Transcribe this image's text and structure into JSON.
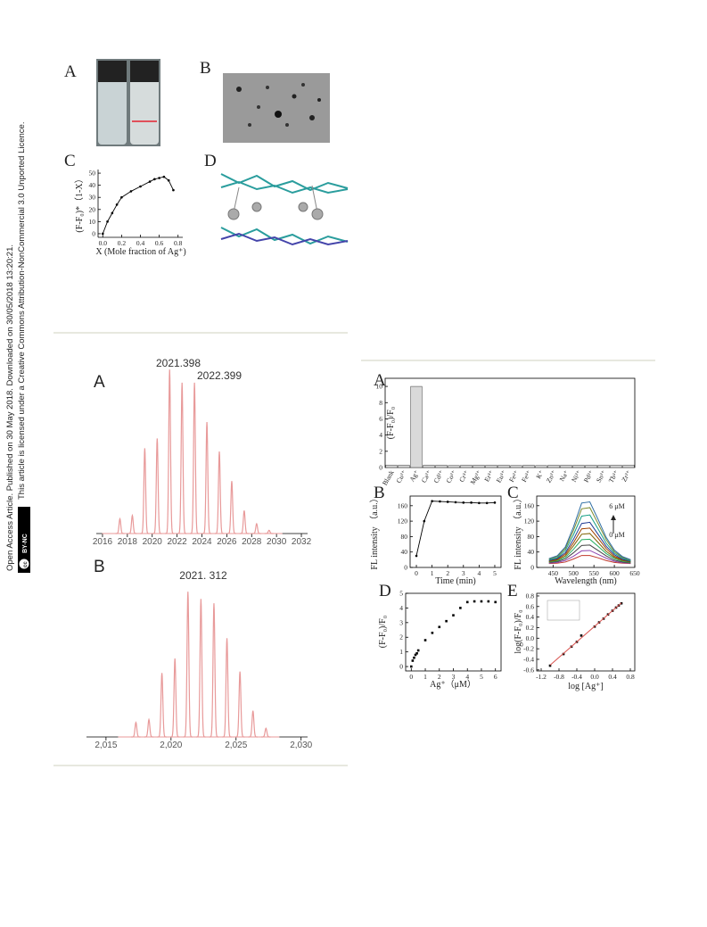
{
  "sidebar": {
    "line1": "Open Access Article. Published on 30 May 2018. Downloaded on 30/05/2018 13:20:21.",
    "line2": "This article is licensed under a Creative Commons Attribution-NonCommercial 3.0 Unported Licence.",
    "badge_icon": "cc",
    "badge": "BY-NC"
  },
  "figure1": {
    "panels": [
      "A",
      "B",
      "D"
    ]
  },
  "chart_data": [
    {
      "type": "line",
      "label": "C",
      "color": "#000000",
      "xlabel": "X (Mole fraction of Ag⁺)",
      "ylabel": "(F-F₀)*（1-X）",
      "x": [
        0,
        0.05,
        0.1,
        0.15,
        0.2,
        0.3,
        0.4,
        0.5,
        0.55,
        0.6,
        0.65,
        0.7,
        0.75
      ],
      "values": [
        0,
        10,
        17,
        24,
        30,
        35,
        39,
        43,
        45,
        46,
        47,
        44,
        36
      ],
      "xlim": [
        -0.05,
        0.85
      ],
      "ylim": [
        -3,
        53
      ],
      "xticks": [
        {
          "value": 0,
          "label": "0.0"
        },
        0.2,
        0.4,
        0.6,
        0.8
      ],
      "yticks": [
        0,
        10,
        20,
        30,
        40,
        50
      ]
    },
    {
      "type": "spectrum",
      "label": "A",
      "color": "#e89a9a",
      "x": [
        2017.4,
        2018.4,
        2019.4,
        2020.4,
        2021.4,
        2022.4,
        2023.4,
        2024.4,
        2025.4,
        2026.4,
        2027.4,
        2028.4,
        2029.4
      ],
      "values": [
        9,
        11,
        52,
        58,
        100,
        92,
        92,
        68,
        50,
        32,
        14,
        6,
        2
      ],
      "xlim": [
        2015.5,
        2032.5
      ],
      "ylim": [
        0,
        105
      ],
      "xticks": [
        2016,
        2018,
        2020,
        2022,
        2024,
        2026,
        2028,
        2030,
        2032
      ],
      "annotations": [
        "2021.398",
        "2022.399"
      ]
    },
    {
      "type": "spectrum",
      "label": "B",
      "color": "#e89a9a",
      "x": [
        2017.3,
        2018.3,
        2019.3,
        2020.3,
        2021.3,
        2022.3,
        2023.3,
        2024.3,
        2025.3,
        2026.3,
        2027.3
      ],
      "values": [
        10,
        12,
        44,
        54,
        100,
        95,
        92,
        68,
        45,
        18,
        6
      ],
      "xlim": [
        2013.5,
        2030.5
      ],
      "ylim": [
        0,
        105
      ],
      "xticks": [
        {
          "value": 2015,
          "label": "2,015"
        },
        {
          "value": 2020,
          "label": "2,020"
        },
        {
          "value": 2025,
          "label": "2,025"
        },
        {
          "value": 2030,
          "label": "2,030"
        }
      ],
      "annotations": [
        "2021. 312"
      ]
    },
    {
      "type": "bar",
      "label": "A",
      "color": "#d9d9d9",
      "ylabel": "(F-F₀)/F₀",
      "categories": [
        "Blank",
        "Cu²⁺",
        "Ag⁺",
        "Ca²⁺",
        "Cd²⁺",
        "Co²⁺",
        "Cr³⁺",
        "Mg²⁺",
        "Er³⁺",
        "Eu³⁺",
        "Fe²⁺",
        "Fe³⁺",
        "K⁺",
        "Zn²⁺",
        "Na⁺",
        "Ni²⁺",
        "Pd²⁺",
        "Sn²⁺",
        "Tb³⁺",
        "Zr²⁺"
      ],
      "values": [
        0.3,
        0.3,
        10,
        0.3,
        0.3,
        0.25,
        0.3,
        0.3,
        0.3,
        0.3,
        0.25,
        0.3,
        0.25,
        0.3,
        0.3,
        0.3,
        0.3,
        0.3,
        0.3,
        0.3
      ],
      "ylim": [
        0,
        11
      ],
      "yticks": [
        0,
        2,
        4,
        6,
        8,
        10
      ]
    },
    {
      "type": "line",
      "label": "B",
      "color": "#000000",
      "xlabel": "Time (min)",
      "ylabel": "FL intensity （a.u.）",
      "x": [
        0,
        0.5,
        1,
        1.5,
        2,
        2.5,
        3,
        3.5,
        4,
        4.5,
        5
      ],
      "values": [
        30,
        120,
        172,
        171,
        170,
        169,
        168,
        168,
        167,
        167,
        168
      ],
      "xlim": [
        -0.4,
        5.4
      ],
      "ylim": [
        0,
        185
      ],
      "xticks": [
        0,
        1,
        2,
        3,
        4,
        5
      ],
      "yticks": [
        0,
        40,
        80,
        120,
        160
      ]
    },
    {
      "type": "line",
      "label": "C",
      "xlabel": "Wavelength (nm)",
      "ylabel": "FL intensity （a.u.）",
      "x": [
        440,
        460,
        480,
        500,
        520,
        540,
        560,
        580,
        600,
        620,
        640
      ],
      "series": [
        {
          "color": "#c0392b",
          "values": [
            10,
            11,
            14,
            22,
            31,
            31,
            25,
            18,
            13,
            11,
            10
          ]
        },
        {
          "color": "#8e44ad",
          "values": [
            11,
            13,
            18,
            29,
            43,
            44,
            34,
            24,
            16,
            12,
            11
          ]
        },
        {
          "color": "#444444",
          "values": [
            13,
            15,
            22,
            38,
            57,
            58,
            44,
            30,
            19,
            14,
            12
          ]
        },
        {
          "color": "#27ae60",
          "values": [
            14,
            17,
            26,
            47,
            72,
            73,
            55,
            36,
            23,
            16,
            13
          ]
        },
        {
          "color": "#7f6000",
          "values": [
            15,
            19,
            30,
            56,
            86,
            88,
            65,
            42,
            26,
            18,
            14
          ]
        },
        {
          "color": "#a04000",
          "values": [
            17,
            21,
            34,
            64,
            100,
            102,
            76,
            49,
            29,
            20,
            15
          ]
        },
        {
          "color": "#1f3a93",
          "values": [
            18,
            23,
            38,
            73,
            114,
            117,
            86,
            55,
            33,
            21,
            16
          ]
        },
        {
          "color": "#16a085",
          "values": [
            20,
            25,
            44,
            85,
            133,
            136,
            100,
            63,
            37,
            24,
            17
          ]
        },
        {
          "color": "#7d8a2e",
          "values": [
            22,
            28,
            49,
            96,
            152,
            155,
            114,
            72,
            41,
            26,
            19
          ]
        },
        {
          "color": "#2e6da4",
          "values": [
            23,
            30,
            53,
            105,
            167,
            170,
            125,
            78,
            45,
            28,
            20
          ]
        }
      ],
      "xlim": [
        410,
        650
      ],
      "ylim": [
        0,
        185
      ],
      "xticks": [
        450,
        500,
        550,
        600,
        650
      ],
      "yticks": [
        0,
        40,
        80,
        120,
        160
      ],
      "annotations": [
        "6 μM",
        "0 μM"
      ]
    },
    {
      "type": "scatter",
      "label": "D",
      "color": "#000000",
      "xlabel": "Ag⁺（μM）",
      "ylabel": "(F-F₀)/F₀",
      "x": [
        0,
        0.1,
        0.2,
        0.3,
        0.4,
        0.5,
        1,
        1.5,
        2,
        2.5,
        3,
        3.5,
        4,
        4.5,
        5,
        5.5,
        6
      ],
      "values": [
        0,
        0.4,
        0.6,
        0.8,
        0.9,
        1.1,
        1.8,
        2.3,
        2.7,
        3.1,
        3.5,
        4.0,
        4.4,
        4.45,
        4.45,
        4.45,
        4.4
      ],
      "xlim": [
        -0.4,
        6.4
      ],
      "ylim": [
        -0.3,
        5
      ],
      "xticks": [
        0,
        1,
        2,
        3,
        4,
        5,
        6
      ],
      "yticks": [
        0,
        1,
        2,
        3,
        4,
        5
      ]
    },
    {
      "type": "scatter",
      "label": "E",
      "color": "#000000",
      "fit_color": "#d9534f",
      "xlabel": "log [Ag⁺]",
      "ylabel": "log(F-F₀)/F₀",
      "x": [
        -1.0,
        -0.7,
        -0.52,
        -0.4,
        -0.3,
        0,
        0.1,
        0.2,
        0.3,
        0.4,
        0.48,
        0.54,
        0.6
      ],
      "values": [
        -0.52,
        -0.3,
        -0.16,
        -0.07,
        0.05,
        0.22,
        0.3,
        0.37,
        0.45,
        0.52,
        0.58,
        0.62,
        0.66
      ],
      "xlim": [
        -1.3,
        0.9
      ],
      "ylim": [
        -0.62,
        0.85
      ],
      "xticks": [
        -1.2,
        -0.8,
        -0.4,
        {
          "value": 0,
          "label": "0.0"
        },
        0.4,
        0.8
      ],
      "yticks": [
        -0.6,
        -0.4,
        -0.2,
        {
          "value": 0,
          "label": "0.0"
        },
        0.2,
        0.4,
        0.6,
        0.8
      ]
    }
  ]
}
